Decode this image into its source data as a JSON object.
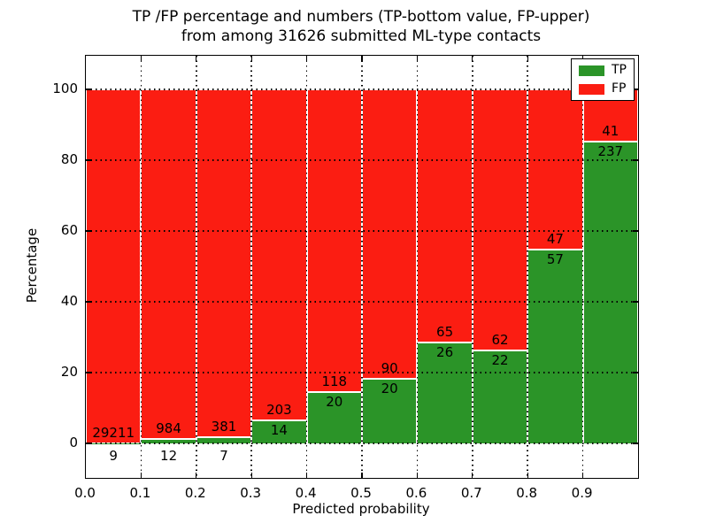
{
  "chart_data": {
    "type": "bar",
    "stacked": true,
    "title_line1": "TP /FP percentage and numbers (TP-bottom value, FP-upper)",
    "title_line2": "from among 31626 submitted ML-type contacts",
    "total_contacts": 31626,
    "xlabel": "Predicted probability",
    "ylabel": "Percentage",
    "xlim": [
      0.0,
      1.0
    ],
    "ylim": [
      -11,
      110
    ],
    "bin_width": 0.1,
    "bin_starts": [
      0.0,
      0.1,
      0.2,
      0.3,
      0.4,
      0.5,
      0.6,
      0.7,
      0.8,
      0.9
    ],
    "xticks": [
      "0.0",
      "0.1",
      "0.2",
      "0.3",
      "0.4",
      "0.5",
      "0.6",
      "0.7",
      "0.8",
      "0.9"
    ],
    "yticks": [
      0,
      20,
      40,
      60,
      80,
      100
    ],
    "grid": "dotted, both axes, drawn over bars",
    "bar_edge_color": "#ffffff",
    "series": [
      {
        "name": "TP",
        "color": "#2b9428",
        "counts": [
          9,
          12,
          7,
          14,
          20,
          20,
          26,
          22,
          57,
          237
        ]
      },
      {
        "name": "FP",
        "color": "#fb1d12",
        "counts": [
          29211,
          984,
          381,
          203,
          118,
          90,
          65,
          62,
          47,
          41
        ]
      }
    ],
    "tp_percent_of_bin": [
      0.03,
      1.2,
      1.8,
      6.45,
      14.49,
      18.18,
      28.57,
      26.19,
      54.81,
      85.25
    ],
    "legend": {
      "position": "upper right",
      "entries": [
        "TP",
        "FP"
      ]
    }
  }
}
